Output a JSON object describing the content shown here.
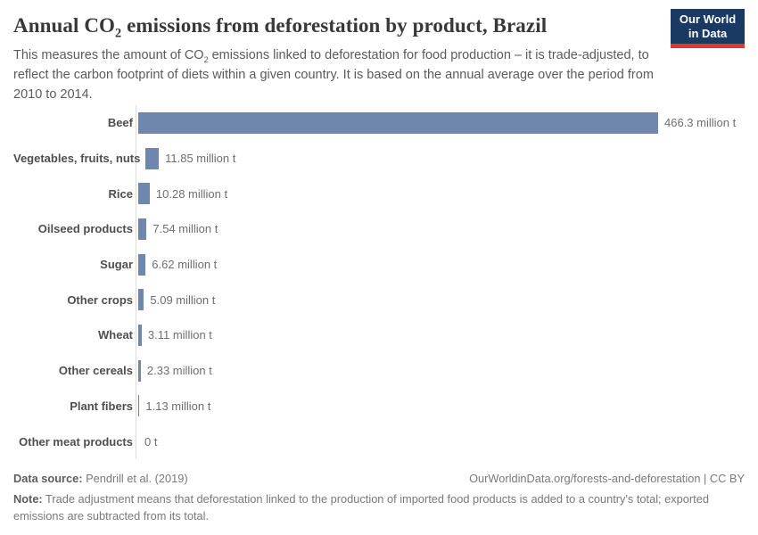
{
  "header": {
    "title_pre": "Annual CO",
    "title_sub": "2",
    "title_post": " emissions from deforestation by product, Brazil",
    "subtitle_pre": "This measures the amount of CO",
    "subtitle_sub": "2",
    "subtitle_post": " emissions linked to deforestation for food production – it is trade-adjusted, to reflect the carbon footprint of diets within a given country. It is based on the annual average over the period from 2010 to 2014."
  },
  "logo": {
    "line1": "Our World",
    "line2": "in Data",
    "bg_color": "#1a3a63",
    "accent_color": "#dc3a2b"
  },
  "chart_data": {
    "type": "bar",
    "orientation": "horizontal",
    "title": "Annual CO₂ emissions from deforestation by product, Brazil",
    "unit": "million t",
    "categories": [
      "Beef",
      "Vegetables, fruits, nuts",
      "Rice",
      "Oilseed products",
      "Sugar",
      "Other crops",
      "Wheat",
      "Other cereals",
      "Plant fibers",
      "Other meat products"
    ],
    "values": [
      466.3,
      11.85,
      10.28,
      7.54,
      6.62,
      5.09,
      3.11,
      2.33,
      1.13,
      0
    ],
    "value_labels": [
      "466.3 million t",
      "11.85 million t",
      "10.28 million t",
      "7.54 million t",
      "6.62 million t",
      "5.09 million t",
      "3.11 million t",
      "2.33 million t",
      "1.13 million t",
      "0 t"
    ],
    "xlim": [
      0,
      466.3
    ],
    "bar_color": "#6f87ad",
    "axis_color": "#dcdcdc",
    "grid": false,
    "legend": "none"
  },
  "footer": {
    "datasource_label": "Data source:",
    "datasource_value": " Pendrill et al. (2019)",
    "url": "OurWorldinData.org/forests-and-deforestation | CC BY",
    "note_label": "Note:",
    "note_value": " Trade adjustment means that deforestation linked to the production of imported food products is added to a country's total; exported emissions are subtracted from its total."
  }
}
